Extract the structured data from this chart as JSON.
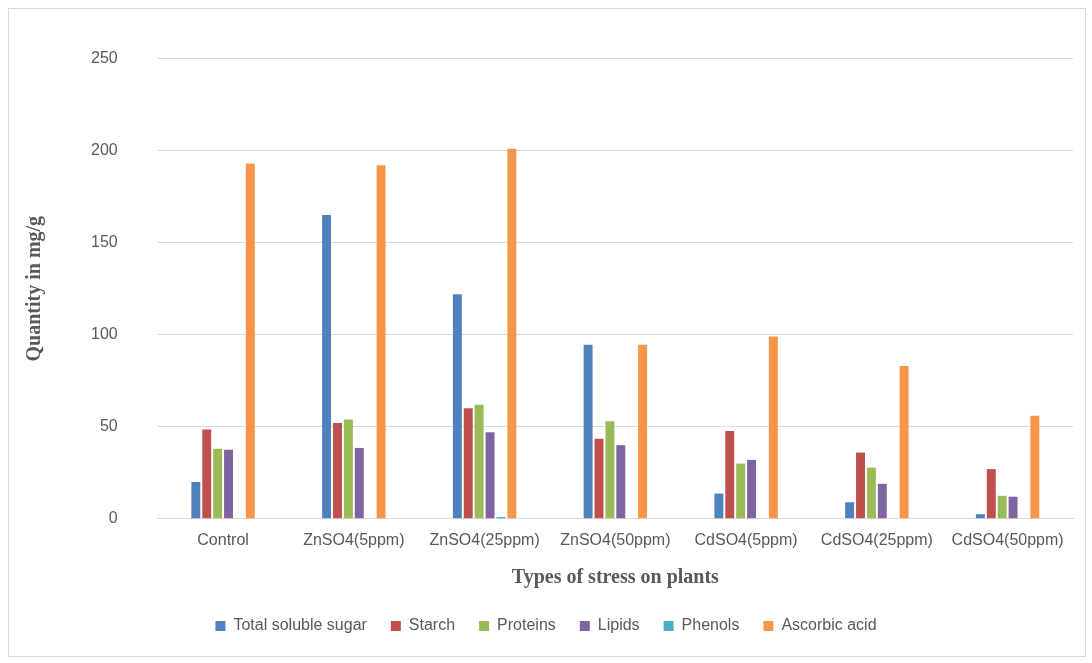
{
  "chart_data": {
    "type": "bar",
    "xlabel": "Types of stress on plants",
    "ylabel": "Quantity in mg/g",
    "categories": [
      "Control",
      "ZnSO4(5ppm)",
      "ZnSO4(25ppm)",
      "ZnSO4(50ppm)",
      "CdSO4(5ppm)",
      "CdSO4(25ppm)",
      "CdSO4(50ppm)"
    ],
    "series": [
      {
        "name": "Total soluble sugar",
        "color": "#4f81bd",
        "values": [
          20,
          165,
          122,
          94.5,
          13.7,
          9,
          2.5
        ]
      },
      {
        "name": "Starch",
        "color": "#c0504d",
        "values": [
          48.5,
          52,
          60,
          43.5,
          47.7,
          36,
          27
        ]
      },
      {
        "name": "Proteins",
        "color": "#9bbb59",
        "values": [
          38,
          54,
          62,
          53,
          30,
          27.8,
          12.5
        ]
      },
      {
        "name": "Lipids",
        "color": "#8064a2",
        "values": [
          37.5,
          38.5,
          47,
          40,
          32,
          19,
          12
        ]
      },
      {
        "name": "Phenols",
        "color": "#4bacc6",
        "values": [
          0,
          0,
          1,
          0,
          0,
          0,
          0
        ]
      },
      {
        "name": "Ascorbic acid",
        "color": "#f79646",
        "values": [
          193,
          192,
          201,
          94.5,
          99,
          83,
          56
        ]
      }
    ],
    "ylim": [
      0,
      250
    ],
    "yticks": [
      0,
      50,
      100,
      150,
      200,
      250
    ],
    "grid": "y",
    "legend": "bottom"
  }
}
